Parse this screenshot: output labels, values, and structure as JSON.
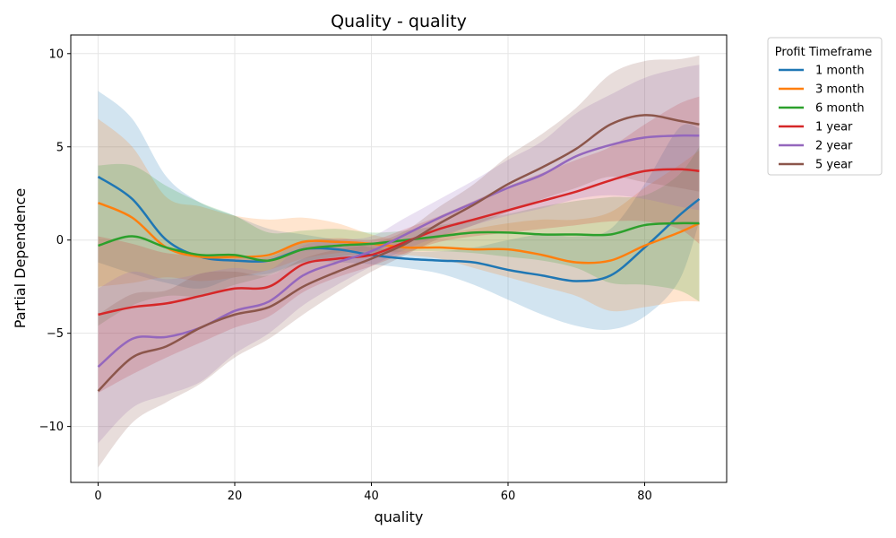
{
  "chart_data": {
    "type": "line",
    "title": "Quality - quality",
    "xlabel": "quality",
    "ylabel": "Partial Dependence",
    "xlim": [
      -4,
      92
    ],
    "ylim": [
      -13,
      11
    ],
    "xticks": [
      0,
      20,
      40,
      60,
      80
    ],
    "yticks": [
      -10,
      -5,
      0,
      5,
      10
    ],
    "xtick_labels": [
      "0",
      "20",
      "40",
      "60",
      "80"
    ],
    "ytick_labels": [
      "−10",
      "−5",
      "0",
      "5",
      "10"
    ],
    "grid": true,
    "legend": {
      "title": "Profit Timeframe",
      "placement": "outside-right-top"
    },
    "x": [
      0,
      5,
      10,
      15,
      20,
      25,
      30,
      35,
      40,
      45,
      50,
      55,
      60,
      65,
      70,
      75,
      80,
      85,
      88
    ],
    "series": [
      {
        "name": "1 month",
        "color": "#1f77b4",
        "values": [
          3.4,
          2.2,
          0.0,
          -0.9,
          -1.1,
          -1.1,
          -0.5,
          -0.5,
          -0.8,
          -1.0,
          -1.1,
          -1.2,
          -1.6,
          -1.9,
          -2.2,
          -1.9,
          -0.4,
          1.3,
          2.2
        ],
        "lower": [
          -1.2,
          -1.8,
          -2.3,
          -2.6,
          -2.0,
          -1.8,
          -1.2,
          -1.2,
          -1.3,
          -1.5,
          -1.8,
          -2.4,
          -3.2,
          -4.0,
          -4.6,
          -4.8,
          -4.1,
          -2.2,
          1.0
        ],
        "upper": [
          8.0,
          6.5,
          3.4,
          2.0,
          1.3,
          0.6,
          0.3,
          0.0,
          -0.4,
          -0.6,
          -0.6,
          -0.4,
          0.0,
          0.3,
          0.2,
          0.6,
          3.0,
          6.0,
          6.0
        ]
      },
      {
        "name": "3 month",
        "color": "#ff7f0e",
        "values": [
          2.0,
          1.2,
          -0.4,
          -0.9,
          -0.9,
          -0.8,
          -0.1,
          -0.1,
          -0.2,
          -0.4,
          -0.4,
          -0.5,
          -0.5,
          -0.8,
          -1.2,
          -1.1,
          -0.3,
          0.4,
          0.9
        ],
        "lower": [
          -2.5,
          -2.3,
          -2.0,
          -2.2,
          -2.0,
          -1.6,
          -1.0,
          -0.7,
          -0.6,
          -0.8,
          -1.0,
          -1.5,
          -2.0,
          -2.5,
          -3.0,
          -3.8,
          -3.6,
          -3.3,
          -3.3
        ],
        "upper": [
          6.5,
          5.0,
          2.3,
          1.8,
          1.3,
          1.1,
          1.2,
          0.9,
          0.3,
          0.0,
          0.3,
          0.6,
          0.9,
          1.1,
          1.1,
          1.5,
          2.8,
          4.0,
          4.8
        ]
      },
      {
        "name": "6 month",
        "color": "#2ca02c",
        "values": [
          -0.3,
          0.2,
          -0.4,
          -0.8,
          -0.8,
          -1.1,
          -0.5,
          -0.3,
          -0.2,
          0.0,
          0.2,
          0.4,
          0.4,
          0.3,
          0.3,
          0.3,
          0.8,
          0.9,
          0.9
        ],
        "lower": [
          -4.6,
          -3.5,
          -3.0,
          -3.0,
          -2.4,
          -1.9,
          -1.2,
          -0.9,
          -0.7,
          -0.6,
          -0.6,
          -0.7,
          -0.9,
          -1.1,
          -1.5,
          -2.3,
          -2.4,
          -2.7,
          -3.3
        ],
        "upper": [
          4.0,
          4.0,
          2.9,
          2.0,
          1.3,
          0.4,
          0.5,
          0.6,
          0.4,
          0.5,
          0.8,
          1.1,
          1.4,
          1.8,
          2.1,
          2.3,
          2.4,
          3.5,
          5.0
        ]
      },
      {
        "name": "1 year",
        "color": "#d62728",
        "values": [
          -4.0,
          -3.6,
          -3.4,
          -3.0,
          -2.6,
          -2.5,
          -1.3,
          -1.0,
          -0.8,
          -0.1,
          0.6,
          1.1,
          1.6,
          2.1,
          2.6,
          3.2,
          3.7,
          3.8,
          3.7
        ],
        "lower": [
          -8.2,
          -7.2,
          -6.3,
          -5.5,
          -4.7,
          -4.1,
          -2.8,
          -2.0,
          -1.4,
          -0.7,
          -0.1,
          0.2,
          0.4,
          0.6,
          0.8,
          1.0,
          1.0,
          0.6,
          -0.2
        ],
        "upper": [
          0.2,
          -0.2,
          -0.7,
          -0.8,
          -0.9,
          -0.9,
          -0.1,
          0.1,
          0.0,
          0.6,
          1.3,
          2.1,
          2.9,
          3.6,
          4.3,
          5.0,
          6.2,
          7.3,
          7.7
        ]
      },
      {
        "name": "2 year",
        "color": "#9467bd",
        "values": [
          -6.8,
          -5.3,
          -5.2,
          -4.7,
          -3.8,
          -3.3,
          -1.9,
          -1.2,
          -0.6,
          0.3,
          1.2,
          2.0,
          2.8,
          3.5,
          4.5,
          5.1,
          5.5,
          5.6,
          5.6
        ],
        "lower": [
          -10.9,
          -9.0,
          -8.3,
          -7.6,
          -6.1,
          -5.0,
          -3.5,
          -2.4,
          -1.4,
          -0.5,
          0.2,
          0.8,
          1.3,
          1.7,
          2.2,
          2.4,
          2.2,
          1.8,
          1.6
        ],
        "upper": [
          -2.6,
          -1.7,
          -2.1,
          -1.8,
          -1.5,
          -1.6,
          -0.3,
          0.0,
          0.2,
          1.2,
          2.2,
          3.2,
          4.3,
          5.3,
          6.8,
          7.8,
          8.7,
          9.2,
          9.4
        ]
      },
      {
        "name": "5 year",
        "color": "#8c564b",
        "values": [
          -8.1,
          -6.3,
          -5.7,
          -4.7,
          -4.0,
          -3.6,
          -2.5,
          -1.7,
          -1.0,
          -0.2,
          0.9,
          1.9,
          3.0,
          3.9,
          4.9,
          6.2,
          6.7,
          6.4,
          6.2
        ],
        "lower": [
          -12.2,
          -9.8,
          -8.7,
          -7.7,
          -6.3,
          -5.3,
          -4.0,
          -2.8,
          -1.7,
          -0.8,
          0.1,
          0.8,
          1.5,
          2.2,
          2.8,
          3.4,
          3.1,
          2.8,
          2.6
        ],
        "upper": [
          -4.0,
          -2.9,
          -2.7,
          -1.8,
          -1.7,
          -1.9,
          -1.0,
          -0.5,
          -0.2,
          0.5,
          1.8,
          3.0,
          4.5,
          5.7,
          7.1,
          8.9,
          9.6,
          9.7,
          9.9
        ]
      }
    ]
  }
}
